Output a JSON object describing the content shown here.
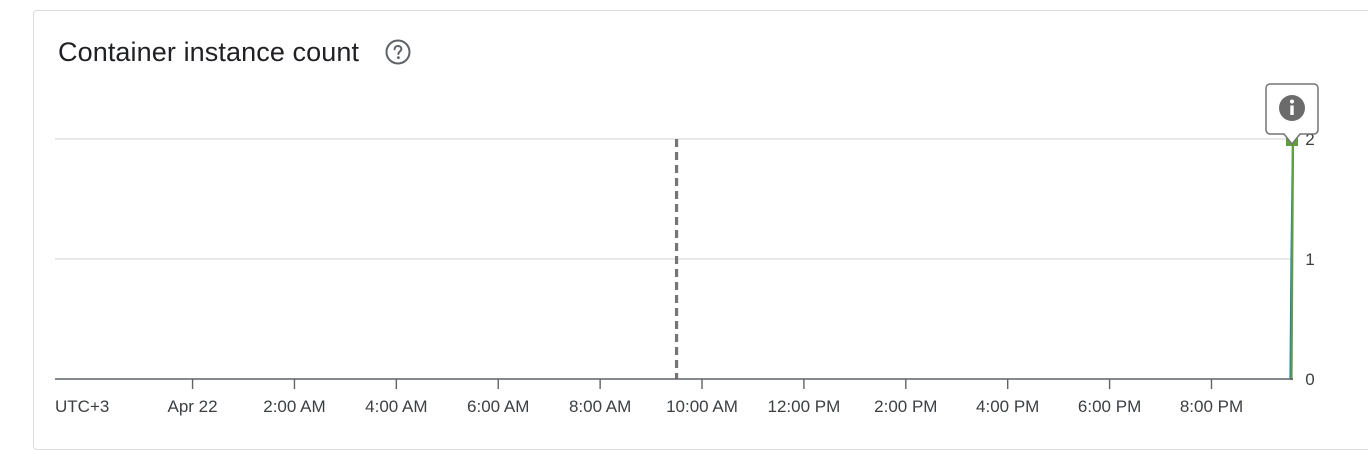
{
  "card": {
    "title": "Container instance count",
    "help_icon": "help-circle-icon",
    "info_icon": "info-icon"
  },
  "chart_data": {
    "type": "line",
    "title": "Container instance count",
    "timezone_label": "UTC+3",
    "x_tick_labels": [
      "Apr 22",
      "2:00 AM",
      "4:00 AM",
      "6:00 AM",
      "8:00 AM",
      "10:00 AM",
      "12:00 PM",
      "2:00 PM",
      "4:00 PM",
      "6:00 PM",
      "8:00 PM"
    ],
    "x_tick_hours": [
      0,
      2,
      4,
      6,
      8,
      10,
      12,
      14,
      16,
      18,
      20
    ],
    "x_range_hours": [
      -2.7,
      21.6
    ],
    "y_ticks": [
      0,
      1,
      2
    ],
    "ylim": [
      0,
      2
    ],
    "y_axis_side": "right",
    "grid": true,
    "marker_hour": 9.5,
    "series": [
      {
        "color": "#1a73e8",
        "x_hours": [
          21.55,
          21.57,
          21.6
        ],
        "values": [
          0,
          1,
          2
        ]
      },
      {
        "color": "#5f9e3a",
        "x_hours": [
          21.55,
          21.57,
          21.6
        ],
        "values": [
          0,
          0,
          2
        ]
      }
    ]
  },
  "colors": {
    "grid": "#dadce0",
    "axis": "#5f6368",
    "marker": "#757575"
  }
}
